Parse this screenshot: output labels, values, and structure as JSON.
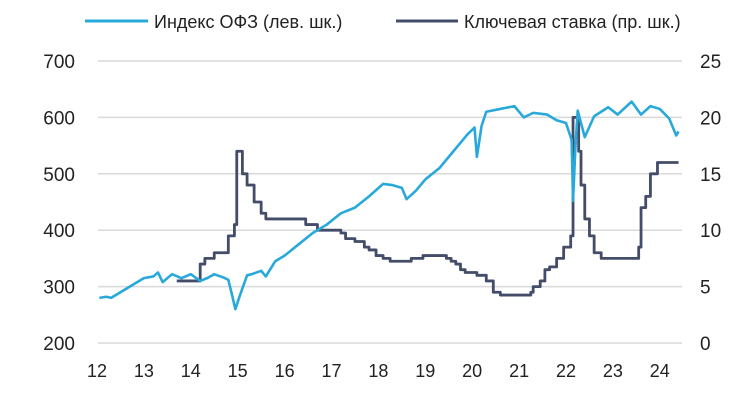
{
  "chart_data": {
    "type": "line",
    "title": "",
    "legend_placement": "top",
    "grid": true,
    "x_ticks": [
      "12",
      "13",
      "14",
      "15",
      "16",
      "17",
      "18",
      "19",
      "20",
      "21",
      "22",
      "23",
      "24"
    ],
    "x_range": [
      12,
      24.4
    ],
    "left_axis": {
      "ylim": [
        200,
        700
      ],
      "ticks": [
        "200",
        "300",
        "400",
        "500",
        "600",
        "700"
      ]
    },
    "right_axis": {
      "ylim": [
        0,
        25
      ],
      "ticks": [
        "0",
        "5",
        "10",
        "15",
        "20",
        "25"
      ]
    },
    "colors": {
      "ofz": "#29a9d9",
      "rate": "#434c68",
      "grid": "#d9d9d9"
    },
    "series": [
      {
        "name": "Индекс ОФЗ (лев. шк.)",
        "axis": "left",
        "step": false,
        "x": [
          12.05,
          12.2,
          12.3,
          12.5,
          12.8,
          13.0,
          13.2,
          13.3,
          13.4,
          13.6,
          13.8,
          14.0,
          14.2,
          14.35,
          14.5,
          14.7,
          14.8,
          14.88,
          14.95,
          15.05,
          15.2,
          15.3,
          15.5,
          15.6,
          15.8,
          16.0,
          16.3,
          16.6,
          16.9,
          17.2,
          17.5,
          17.8,
          18.1,
          18.3,
          18.5,
          18.6,
          18.8,
          19.0,
          19.3,
          19.6,
          19.9,
          20.05,
          20.1,
          20.2,
          20.3,
          20.6,
          20.9,
          21.1,
          21.3,
          21.6,
          21.8,
          22.0,
          22.12,
          22.15,
          22.2,
          22.25,
          22.4,
          22.6,
          22.9,
          23.1,
          23.4,
          23.6,
          23.8,
          24.0,
          24.2,
          24.35,
          24.4
        ],
        "values": [
          280,
          282,
          280,
          290,
          305,
          315,
          318,
          325,
          308,
          322,
          315,
          322,
          310,
          315,
          322,
          316,
          312,
          285,
          260,
          285,
          320,
          322,
          328,
          318,
          345,
          355,
          375,
          395,
          410,
          430,
          440,
          460,
          482,
          480,
          475,
          455,
          470,
          490,
          510,
          540,
          570,
          582,
          530,
          585,
          610,
          615,
          620,
          600,
          608,
          605,
          595,
          590,
          560,
          452,
          545,
          612,
          565,
          602,
          618,
          605,
          628,
          605,
          620,
          615,
          598,
          568,
          575
        ]
      },
      {
        "name": "Ключевая ставка (пр. шк.)",
        "axis": "right",
        "step": true,
        "x": [
          13.7,
          14.2,
          14.3,
          14.5,
          14.8,
          14.93,
          14.98,
          15.1,
          15.2,
          15.35,
          15.5,
          15.6,
          16.45,
          16.7,
          17.2,
          17.3,
          17.5,
          17.7,
          17.8,
          17.95,
          18.1,
          18.25,
          18.7,
          18.95,
          19.45,
          19.55,
          19.65,
          19.75,
          19.85,
          20.1,
          20.3,
          20.45,
          20.6,
          21.25,
          21.3,
          21.45,
          21.55,
          21.65,
          21.8,
          21.95,
          22.1,
          22.15,
          22.27,
          22.32,
          22.4,
          22.5,
          22.6,
          22.75,
          23.55,
          23.6,
          23.7,
          23.8,
          23.95,
          24.4
        ],
        "values": [
          5.5,
          7,
          7.5,
          8,
          9.5,
          10.5,
          17,
          15,
          14,
          12.5,
          11.5,
          11,
          10.5,
          10,
          9.75,
          9.25,
          9,
          8.5,
          8.25,
          7.75,
          7.5,
          7.25,
          7.5,
          7.75,
          7.5,
          7.25,
          7,
          6.5,
          6.25,
          6,
          5.5,
          4.5,
          4.25,
          4.5,
          5,
          5.5,
          6.5,
          6.75,
          7.5,
          8.5,
          9.5,
          20,
          17,
          14,
          11,
          9.5,
          8,
          7.5,
          8.5,
          12,
          13,
          15,
          16,
          16
        ]
      }
    ]
  }
}
